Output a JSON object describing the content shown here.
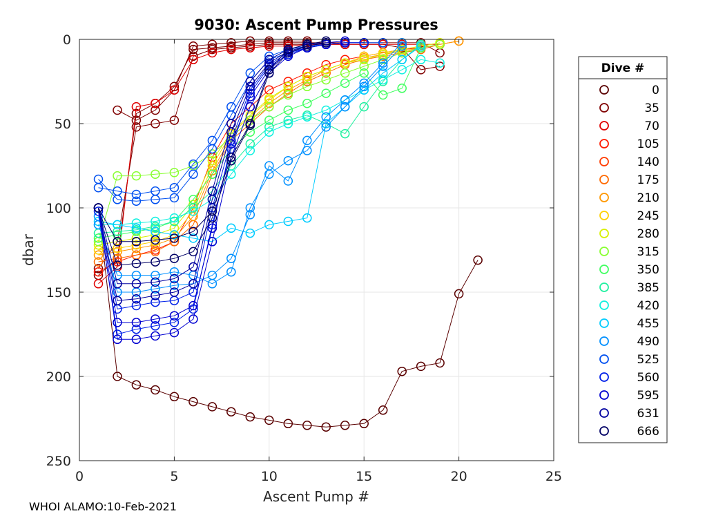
{
  "chart_data": {
    "type": "line",
    "title": "9030: Ascent Pump Pressures",
    "xlabel": "Ascent Pump #",
    "ylabel": "dbar",
    "xlim": [
      0,
      25
    ],
    "ylim": [
      0,
      250
    ],
    "y_reversed": true,
    "grid": true,
    "xticks": [
      0,
      5,
      10,
      15,
      20,
      25
    ],
    "yticks": [
      0,
      50,
      100,
      150,
      200,
      250
    ],
    "legend": {
      "title": "Dive #",
      "placement": "right",
      "entries": [
        {
          "label": "0",
          "color": "#5a0000"
        },
        {
          "label": "35",
          "color": "#800000"
        },
        {
          "label": "70",
          "color": "#e00000"
        },
        {
          "label": "105",
          "color": "#ff1a00"
        },
        {
          "label": "140",
          "color": "#ff3c00"
        },
        {
          "label": "175",
          "color": "#ff6a00"
        },
        {
          "label": "210",
          "color": "#ff9800"
        },
        {
          "label": "245",
          "color": "#ffd000"
        },
        {
          "label": "280",
          "color": "#d8f000"
        },
        {
          "label": "315",
          "color": "#88ff30"
        },
        {
          "label": "350",
          "color": "#40ff60"
        },
        {
          "label": "385",
          "color": "#20f0a0"
        },
        {
          "label": "420",
          "color": "#10f0e0"
        },
        {
          "label": "455",
          "color": "#00ccff"
        },
        {
          "label": "490",
          "color": "#0090ff"
        },
        {
          "label": "525",
          "color": "#0050f0"
        },
        {
          "label": "560",
          "color": "#0020e8"
        },
        {
          "label": "595",
          "color": "#0000d0"
        },
        {
          "label": "631",
          "color": "#0000a0"
        },
        {
          "label": "666",
          "color": "#000066"
        }
      ]
    },
    "series": [
      {
        "name": "0",
        "color": "#5a0000",
        "x": [
          1,
          2,
          3,
          4,
          5,
          6,
          7,
          8,
          9,
          10,
          11,
          12,
          13,
          14,
          15,
          16,
          17,
          18,
          19,
          20,
          21
        ],
        "y": [
          100,
          200,
          205,
          208,
          212,
          215,
          218,
          221,
          224,
          226,
          228,
          229,
          230,
          229,
          228,
          220,
          197,
          194,
          192,
          151,
          131
        ]
      },
      {
        "name": "35",
        "color": "#800000",
        "x": [
          2,
          3,
          4,
          5,
          6,
          7,
          8,
          9,
          10,
          11,
          12
        ],
        "y": [
          42,
          48,
          42,
          30,
          4,
          3,
          2,
          1,
          1,
          1,
          1
        ]
      },
      {
        "name": "35",
        "color": "#800000",
        "x": [
          1,
          2,
          3,
          4,
          5,
          6,
          7,
          8,
          9,
          10,
          11,
          12,
          13,
          14,
          15,
          16,
          17,
          18,
          19
        ],
        "y": [
          140,
          130,
          44,
          38,
          28,
          6,
          5,
          4,
          3,
          2,
          2,
          2,
          2,
          2,
          2,
          2,
          2,
          2,
          8
        ]
      },
      {
        "name": "35",
        "color": "#800000",
        "x": [
          1,
          2,
          3,
          4,
          5,
          6,
          7,
          8,
          9,
          10,
          11,
          12,
          13,
          14,
          15,
          16,
          17,
          18,
          19
        ],
        "y": [
          136,
          120,
          52,
          50,
          48,
          10,
          6,
          5,
          4,
          3,
          3,
          3,
          3,
          3,
          3,
          3,
          5,
          18,
          16
        ]
      },
      {
        "name": "70",
        "color": "#e00000",
        "x": [
          1,
          2,
          3,
          4,
          5,
          6,
          7,
          8,
          9,
          10,
          11,
          12,
          13,
          14,
          15,
          16,
          17,
          18,
          19
        ],
        "y": [
          145,
          135,
          40,
          38,
          30,
          12,
          8,
          6,
          5,
          4,
          4,
          3,
          3,
          3,
          3,
          3,
          3,
          3,
          3
        ]
      },
      {
        "name": "105",
        "color": "#ff1a00",
        "x": [
          1,
          2,
          3,
          4,
          5,
          6,
          7,
          8,
          9,
          10,
          11,
          12,
          13,
          14,
          15,
          16,
          17,
          18,
          19
        ],
        "y": [
          138,
          132,
          128,
          125,
          120,
          100,
          70,
          50,
          40,
          30,
          25,
          20,
          15,
          12,
          10,
          8,
          6,
          5,
          3
        ]
      },
      {
        "name": "175",
        "color": "#ff6a00",
        "x": [
          1,
          2,
          3,
          4,
          5,
          6,
          7,
          8,
          9,
          10,
          11,
          12,
          13,
          14,
          15,
          16,
          17,
          18,
          19,
          20
        ],
        "y": [
          132,
          130,
          128,
          126,
          120,
          110,
          80,
          60,
          50,
          40,
          32,
          25,
          20,
          15,
          12,
          10,
          8,
          6,
          3,
          1
        ]
      },
      {
        "name": "210",
        "color": "#ff9800",
        "x": [
          1,
          2,
          3,
          4,
          5,
          6,
          7,
          8,
          9,
          10,
          11,
          12,
          13,
          14,
          15,
          16,
          17,
          18,
          19,
          20
        ],
        "y": [
          128,
          126,
          124,
          122,
          118,
          105,
          78,
          58,
          48,
          38,
          30,
          24,
          18,
          14,
          11,
          9,
          7,
          5,
          3,
          1
        ]
      },
      {
        "name": "245",
        "color": "#ffd000",
        "x": [
          1,
          2,
          3,
          4,
          5,
          6,
          7,
          8,
          9,
          10,
          11,
          12,
          13,
          14,
          15,
          16,
          17,
          18,
          19
        ],
        "y": [
          125,
          124,
          122,
          120,
          116,
          102,
          75,
          56,
          46,
          36,
          28,
          22,
          18,
          14,
          10,
          8,
          6,
          4,
          2
        ]
      },
      {
        "name": "280",
        "color": "#d8f000",
        "x": [
          1,
          2,
          3,
          4,
          5,
          6,
          7,
          8,
          9,
          10,
          11,
          12,
          13,
          14,
          15,
          16,
          17,
          18,
          19
        ],
        "y": [
          122,
          120,
          118,
          116,
          112,
          98,
          72,
          55,
          45,
          35,
          28,
          22,
          18,
          14,
          12,
          9,
          6,
          4,
          2
        ]
      },
      {
        "name": "315",
        "color": "#88ff30",
        "x": [
          1,
          2,
          3,
          4,
          5,
          6,
          7,
          8,
          9,
          10,
          11,
          12,
          13,
          14,
          15,
          16,
          17,
          18,
          19
        ],
        "y": [
          120,
          81,
          81,
          80,
          79,
          75,
          68,
          58,
          48,
          40,
          33,
          28,
          24,
          20,
          16,
          12,
          8,
          5,
          3
        ]
      },
      {
        "name": "350",
        "color": "#40ff60",
        "x": [
          1,
          2,
          3,
          4,
          5,
          6,
          7,
          8,
          9,
          10,
          11,
          12,
          13,
          14,
          15,
          16,
          17,
          18
        ],
        "y": [
          118,
          116,
          114,
          112,
          108,
          95,
          80,
          65,
          55,
          48,
          42,
          38,
          32,
          26,
          20,
          33,
          29,
          5
        ]
      },
      {
        "name": "385",
        "color": "#20f0a0",
        "x": [
          1,
          2,
          3,
          4,
          5,
          6,
          7,
          8,
          9,
          10,
          11,
          12,
          13,
          14,
          15,
          16,
          17,
          18
        ],
        "y": [
          115,
          114,
          113,
          111,
          108,
          100,
          90,
          75,
          62,
          52,
          48,
          45,
          50,
          56,
          40,
          25,
          12,
          3
        ]
      },
      {
        "name": "420",
        "color": "#10f0e0",
        "x": [
          1,
          2,
          3,
          4,
          5,
          6,
          7,
          8,
          9,
          10,
          11,
          12,
          13,
          14,
          15,
          16,
          17,
          18,
          19
        ],
        "y": [
          110,
          110,
          109,
          108,
          106,
          102,
          95,
          80,
          66,
          55,
          50,
          46,
          42,
          36,
          30,
          24,
          18,
          12,
          14
        ]
      },
      {
        "name": "455",
        "color": "#00ccff",
        "x": [
          1,
          2,
          3,
          4,
          5,
          6,
          7,
          8,
          9,
          10,
          11,
          12,
          13,
          14,
          15,
          16,
          17,
          18
        ],
        "y": [
          108,
          110,
          112,
          114,
          116,
          118,
          120,
          112,
          115,
          110,
          108,
          106,
          50,
          40,
          30,
          20,
          12,
          4
        ]
      },
      {
        "name": "490",
        "color": "#0090ff",
        "x": [
          1,
          2,
          3,
          4,
          5,
          6,
          7,
          8,
          9,
          10,
          11,
          12,
          13,
          14,
          15,
          16,
          17
        ],
        "y": [
          110,
          140,
          140,
          140,
          138,
          140,
          145,
          138,
          100,
          80,
          72,
          66,
          52,
          40,
          28,
          16,
          4
        ]
      },
      {
        "name": "490",
        "color": "#0090ff",
        "x": [
          1,
          2,
          3,
          4,
          5,
          6,
          7,
          8,
          9,
          10,
          11,
          12,
          13,
          14,
          15,
          16,
          17
        ],
        "y": [
          105,
          150,
          150,
          148,
          146,
          145,
          140,
          130,
          104,
          75,
          84,
          60,
          46,
          36,
          26,
          14,
          2
        ]
      },
      {
        "name": "525",
        "color": "#0050f0",
        "x": [
          1,
          2,
          3,
          4,
          5,
          6,
          7,
          8,
          9,
          10,
          11,
          12,
          13,
          14,
          15,
          16
        ],
        "y": [
          88,
          90,
          92,
          90,
          88,
          74,
          60,
          40,
          20,
          10,
          6,
          4,
          3,
          2,
          2,
          2
        ]
      },
      {
        "name": "525",
        "color": "#0050f0",
        "x": [
          1,
          2,
          3,
          4,
          5,
          6,
          7,
          8,
          9,
          10,
          11,
          12,
          13,
          14,
          15,
          16
        ],
        "y": [
          83,
          95,
          96,
          95,
          94,
          80,
          65,
          45,
          25,
          12,
          8,
          5,
          3,
          2,
          2,
          2
        ]
      },
      {
        "name": "560",
        "color": "#0020e8",
        "x": [
          1,
          2,
          3,
          4,
          5,
          6,
          7,
          8,
          9,
          10,
          11,
          12,
          13,
          14,
          15
        ],
        "y": [
          100,
          160,
          158,
          156,
          155,
          150,
          100,
          60,
          30,
          15,
          8,
          5,
          3,
          2,
          2
        ]
      },
      {
        "name": "560",
        "color": "#0020e8",
        "x": [
          1,
          2,
          3,
          4,
          5,
          6,
          7,
          8,
          9,
          10,
          11,
          12,
          13,
          14,
          15
        ],
        "y": [
          102,
          175,
          172,
          170,
          168,
          160,
          110,
          65,
          32,
          16,
          9,
          5,
          3,
          2,
          2
        ]
      },
      {
        "name": "595",
        "color": "#0000d0",
        "x": [
          1,
          2,
          3,
          4,
          5,
          6,
          7,
          8,
          9,
          10,
          11,
          12,
          13,
          14
        ],
        "y": [
          100,
          178,
          178,
          176,
          174,
          166,
          120,
          70,
          40,
          20,
          10,
          5,
          3,
          2
        ]
      },
      {
        "name": "595",
        "color": "#0000d0",
        "x": [
          1,
          2,
          3,
          4,
          5,
          6,
          7,
          8,
          9,
          10,
          11,
          12,
          13,
          14
        ],
        "y": [
          100,
          168,
          168,
          166,
          164,
          158,
          112,
          62,
          34,
          18,
          8,
          4,
          2,
          1
        ]
      },
      {
        "name": "631",
        "color": "#0000a0",
        "x": [
          1,
          2,
          3,
          4,
          5,
          6,
          7,
          8,
          9,
          10,
          11,
          12,
          13
        ],
        "y": [
          100,
          145,
          145,
          144,
          142,
          135,
          90,
          50,
          25,
          12,
          6,
          3,
          2
        ]
      },
      {
        "name": "631",
        "color": "#0000a0",
        "x": [
          1,
          2,
          3,
          4,
          5,
          6,
          7,
          8,
          9,
          10,
          11,
          12,
          13
        ],
        "y": [
          100,
          155,
          154,
          152,
          150,
          145,
          95,
          55,
          28,
          14,
          7,
          4,
          2
        ]
      },
      {
        "name": "666",
        "color": "#000066",
        "x": [
          1,
          2,
          3,
          4,
          5,
          6,
          7,
          8,
          9,
          10,
          11,
          12,
          13
        ],
        "y": [
          100,
          134,
          133,
          132,
          130,
          126,
          106,
          72,
          51,
          20,
          8,
          4,
          2
        ]
      },
      {
        "name": "666",
        "color": "#000066",
        "x": [
          1,
          2,
          3,
          4,
          5,
          6,
          7,
          8,
          9,
          10,
          11,
          12,
          13
        ],
        "y": [
          100,
          120,
          120,
          119,
          118,
          114,
          102,
          70,
          50,
          18,
          6,
          3,
          1
        ]
      }
    ]
  },
  "footer": {
    "text": "WHOI ALAMO:10-Feb-2021"
  }
}
